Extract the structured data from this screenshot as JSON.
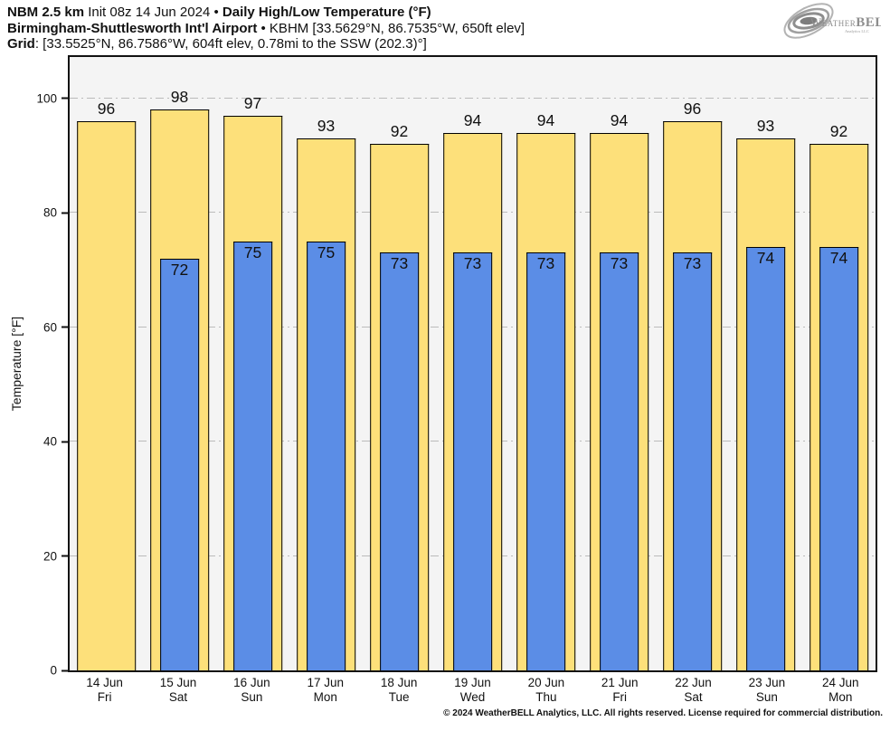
{
  "header": {
    "line1": [
      {
        "text": "NBM 2.5 km",
        "bold": true
      },
      {
        "text": " Init 08z 14 Jun 2024 • ",
        "bold": false
      },
      {
        "text": "Daily High/Low Temperature (°F)",
        "bold": true
      }
    ],
    "line2": [
      {
        "text": "Birmingham-Shuttlesworth Int'l Airport",
        "bold": true
      },
      {
        "text": " • KBHM [33.5629°N, 86.7535°W, 650ft elev]",
        "bold": false
      }
    ],
    "line3": [
      {
        "text": "Grid",
        "bold": true
      },
      {
        "text": ": [33.5525°N, 86.7586°W, 604ft elev, 0.78mi to the SSW (202.3)°]",
        "bold": false
      }
    ]
  },
  "logo": {
    "weather": "Weather",
    "bell": "BELL",
    "sub": "Analytics LLC"
  },
  "footer": {
    "copyright": "© 2024 WeatherBELL Analytics, LLC. All rights reserved. License required for commercial distribution."
  },
  "chart_data": {
    "type": "bar",
    "title": "Daily High/Low Temperature (°F)",
    "station": "Birmingham-Shuttlesworth Int'l Airport (KBHM)",
    "xlabel": "",
    "ylabel": "Temperature [°F]",
    "ylim": [
      0,
      107.2
    ],
    "y_ticks": [
      0,
      20,
      40,
      60,
      80,
      100
    ],
    "grid": "horizontal dash-dot gridlines at 20,40,60,80,100",
    "legend_position": "none",
    "categories": [
      {
        "date": "14 Jun",
        "dow": "Fri"
      },
      {
        "date": "15 Jun",
        "dow": "Sat"
      },
      {
        "date": "16 Jun",
        "dow": "Sun"
      },
      {
        "date": "17 Jun",
        "dow": "Mon"
      },
      {
        "date": "18 Jun",
        "dow": "Tue"
      },
      {
        "date": "19 Jun",
        "dow": "Wed"
      },
      {
        "date": "20 Jun",
        "dow": "Thu"
      },
      {
        "date": "21 Jun",
        "dow": "Fri"
      },
      {
        "date": "22 Jun",
        "dow": "Sat"
      },
      {
        "date": "23 Jun",
        "dow": "Sun"
      },
      {
        "date": "24 Jun",
        "dow": "Mon"
      }
    ],
    "series": [
      {
        "name": "Daily High",
        "color": "#fde07a",
        "values": [
          96,
          98,
          97,
          93,
          92,
          94,
          94,
          94,
          96,
          93,
          92
        ]
      },
      {
        "name": "Daily Low",
        "color": "#5b8de6",
        "values": [
          null,
          72,
          75,
          75,
          73,
          73,
          73,
          73,
          73,
          74,
          74
        ]
      }
    ],
    "colors": {
      "high_bar": "#fde07a",
      "low_bar": "#5b8de6",
      "bar_border": "#000000",
      "plot_background": "#f4f4f4",
      "gridline": "#bbbbbb",
      "axis": "#111111",
      "logo_gray": "#8e8e8e"
    }
  }
}
